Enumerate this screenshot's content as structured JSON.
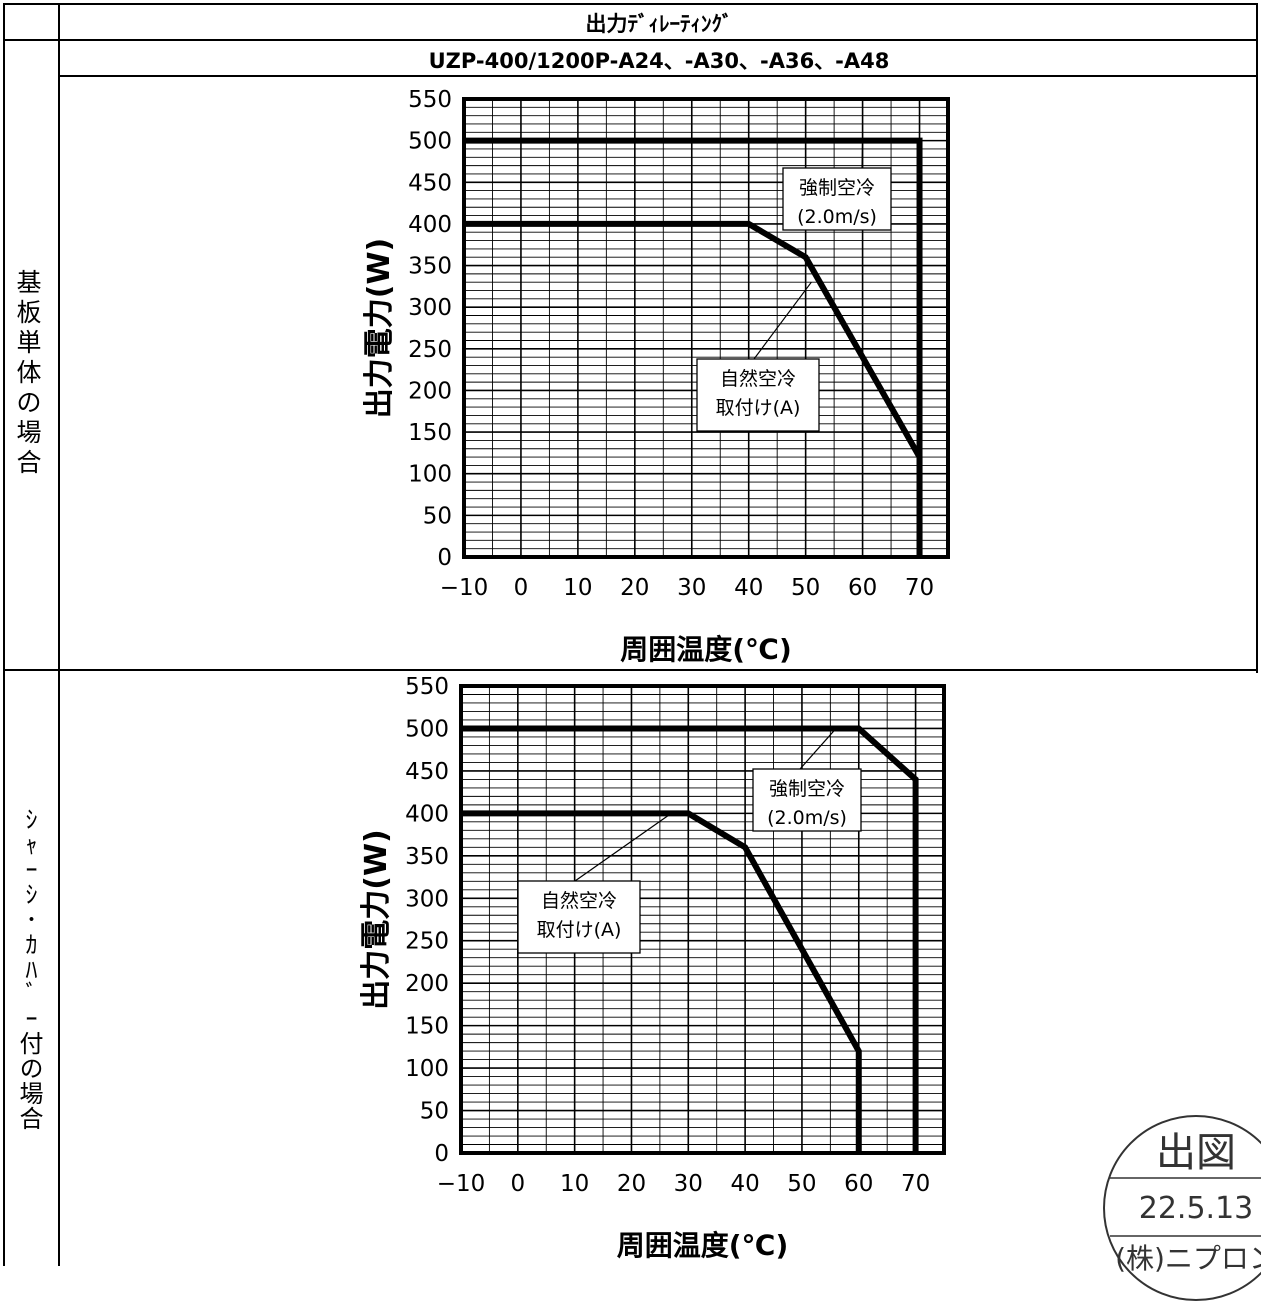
{
  "table": {
    "header": "出力ﾃﾞｨﾚｰﾃｨﾝｸﾞ",
    "model": "UZP-400/1200P-A24、-A30、-A36、-A48",
    "row1_label": [
      "基",
      "板",
      "単",
      "体",
      "の",
      "場",
      "合"
    ],
    "row2_label": "ｼｬｰｼ･ｶﾊﾞｰ付の場合"
  },
  "chart_data": [
    {
      "type": "line",
      "name": "board-only",
      "ylabel": "出力電力(W)",
      "xlabel": "周囲温度(℃)",
      "xlim": [
        -10,
        75
      ],
      "ylim": [
        0,
        550
      ],
      "x_ticks": [
        "−10",
        "0",
        "10",
        "20",
        "30",
        "40",
        "50",
        "60",
        "70"
      ],
      "y_ticks": [
        "550",
        "500",
        "450",
        "400",
        "350",
        "300",
        "250",
        "200",
        "150",
        "100",
        "50",
        "0"
      ],
      "grid": true,
      "series": [
        {
          "name_lines": [
            "強制空冷",
            "(2.0m/s)"
          ],
          "points": [
            [
              -10,
              500
            ],
            [
              70,
              500
            ],
            [
              70,
              0
            ]
          ]
        },
        {
          "name_lines": [
            "自然空冷",
            "取付け(A)"
          ],
          "points": [
            [
              -10,
              400
            ],
            [
              40,
              400
            ],
            [
              50,
              360
            ],
            [
              70,
              120
            ],
            [
              70,
              0
            ]
          ]
        }
      ]
    },
    {
      "type": "line",
      "name": "with-chassis-cover",
      "ylabel": "出力電力(W)",
      "xlabel": "周囲温度(℃)",
      "xlim": [
        -10,
        75
      ],
      "ylim": [
        0,
        550
      ],
      "x_ticks": [
        "−10",
        "0",
        "10",
        "20",
        "30",
        "40",
        "50",
        "60",
        "70"
      ],
      "y_ticks": [
        "550",
        "500",
        "450",
        "400",
        "350",
        "300",
        "250",
        "200",
        "150",
        "100",
        "50",
        "0"
      ],
      "grid": true,
      "series": [
        {
          "name_lines": [
            "強制空冷",
            "(2.0m/s)"
          ],
          "points": [
            [
              -10,
              500
            ],
            [
              60,
              500
            ],
            [
              70,
              440
            ],
            [
              70,
              0
            ]
          ]
        },
        {
          "name_lines": [
            "自然空冷",
            "取付け(A)"
          ],
          "points": [
            [
              -10,
              400
            ],
            [
              30,
              400
            ],
            [
              40,
              360
            ],
            [
              60,
              120
            ],
            [
              60,
              0
            ]
          ]
        }
      ]
    }
  ],
  "stamp": {
    "line1": "出図",
    "line2": "22.5.13",
    "line3": "(株)ニプロン"
  }
}
